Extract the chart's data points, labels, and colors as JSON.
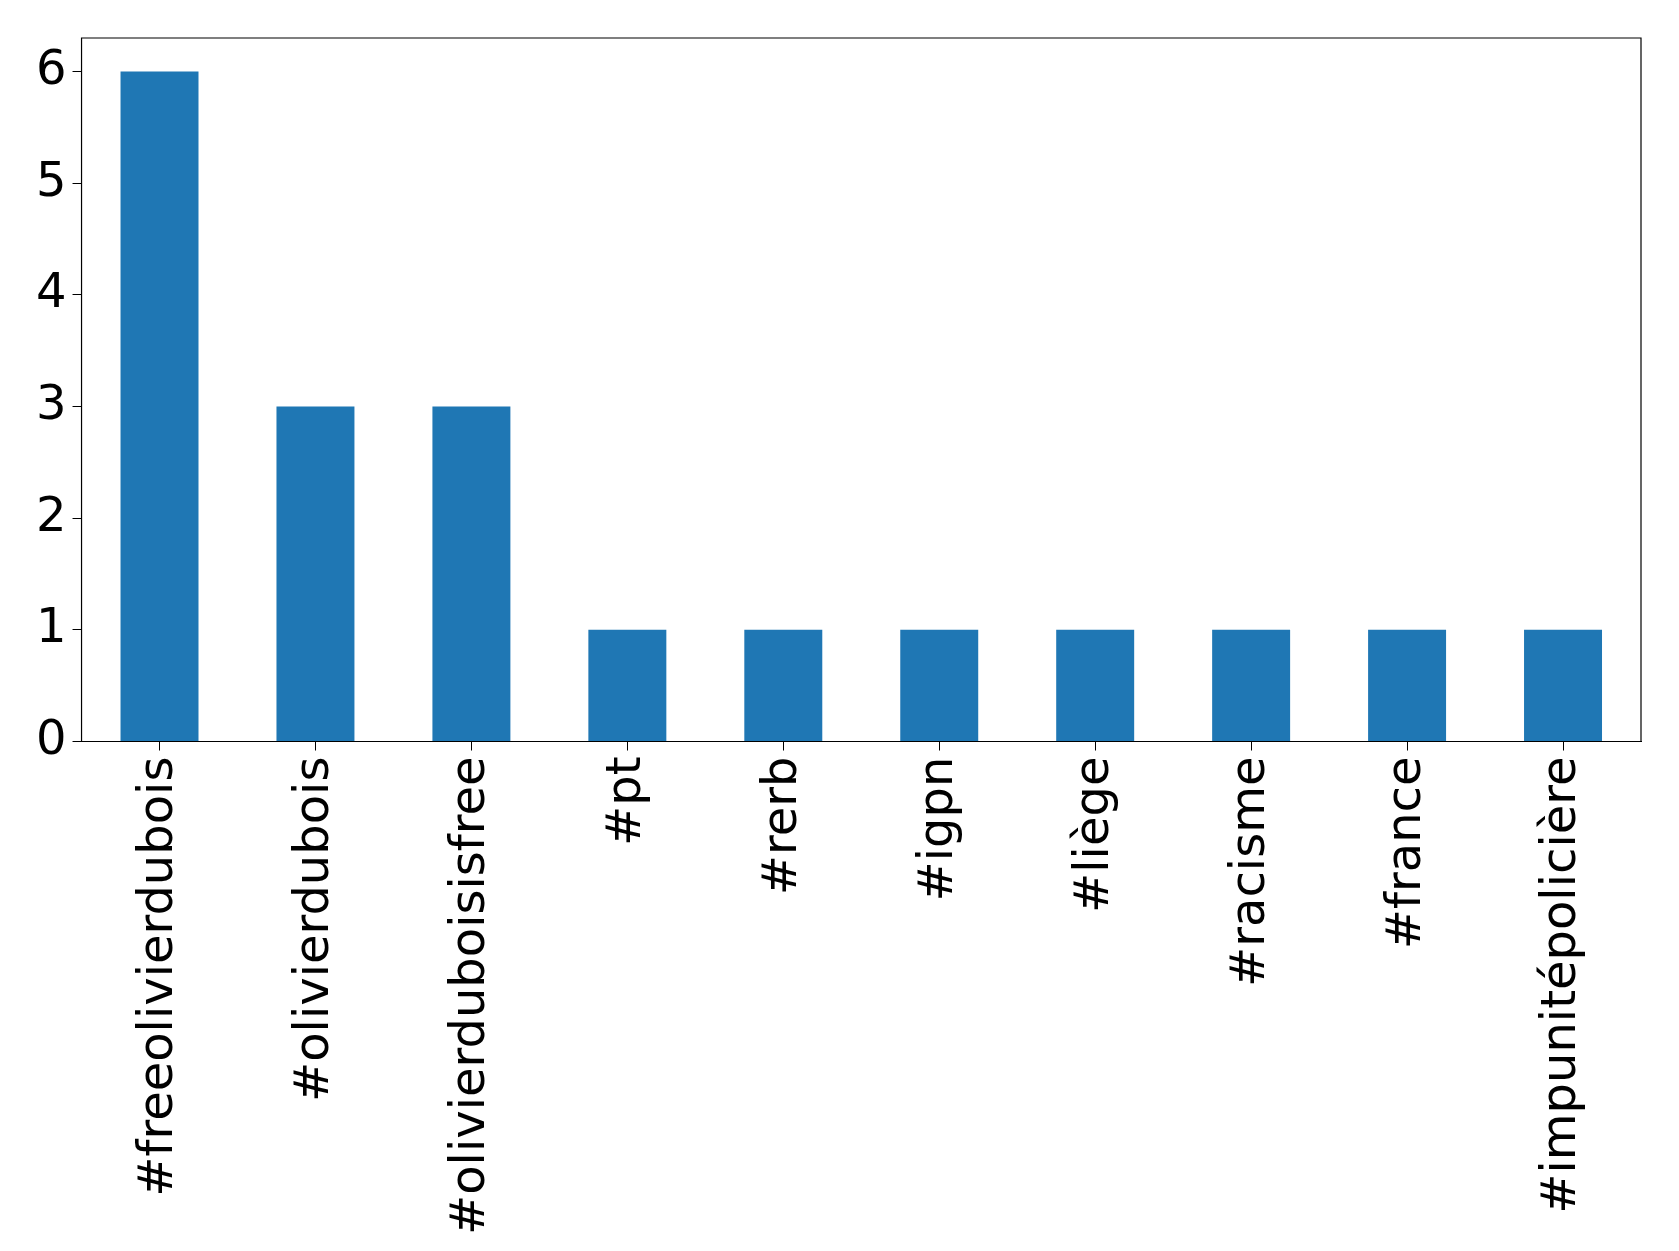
{
  "chart_data": {
    "type": "bar",
    "categories": [
      "#freeolivierdubois",
      "#olivierdubois",
      "#olivierduboisisfree",
      "#pt",
      "#rerb",
      "#igpn",
      "#liège",
      "#racisme",
      "#france",
      "#impunitépolicière"
    ],
    "values": [
      6,
      3,
      3,
      1,
      1,
      1,
      1,
      1,
      1,
      1
    ],
    "color": "#1f77b4",
    "ylim": [
      0,
      6.3
    ],
    "yticks": [
      0,
      1,
      2,
      3,
      4,
      5,
      6
    ],
    "grid": false,
    "legend": false
  }
}
